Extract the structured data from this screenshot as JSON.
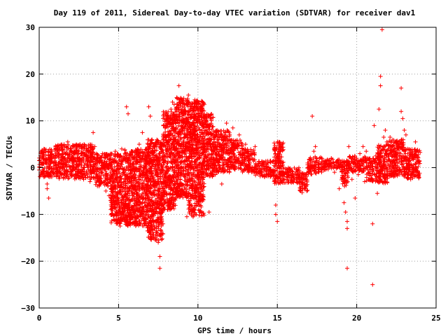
{
  "chart_data": {
    "type": "scatter",
    "title": "Day 119 of 2011, Sidereal Day-to-day VTEC variation (SDTVAR) for receiver dav1",
    "xlabel": "GPS time / hours",
    "ylabel": "SDTVAR / TECUs",
    "xlim": [
      0,
      25
    ],
    "ylim": [
      -30,
      30
    ],
    "x_ticks": [
      0,
      5,
      10,
      15,
      20,
      25
    ],
    "y_ticks": [
      -30,
      -20,
      -10,
      0,
      10,
      20,
      30
    ],
    "x_tick_labels": [
      "0",
      "5",
      "10",
      "15",
      "20",
      "25"
    ],
    "y_tick_labels": [
      "−30",
      "−20",
      "−10",
      "0",
      "10",
      "20",
      "30"
    ],
    "grid": true,
    "marker": "plus",
    "color": "#ff0000",
    "series": [
      {
        "points": [
          [
            0.0,
            1.5
          ],
          [
            0.0,
            -0.5
          ],
          [
            0.1,
            3.0
          ],
          [
            0.1,
            -1.0
          ],
          [
            0.2,
            2.5
          ],
          [
            0.3,
            4.0
          ],
          [
            0.3,
            -2.0
          ],
          [
            0.4,
            3.5
          ],
          [
            0.5,
            -3.5
          ],
          [
            0.5,
            -4.5
          ],
          [
            0.6,
            -6.5
          ],
          [
            0.7,
            2.0
          ],
          [
            0.8,
            3.5
          ],
          [
            0.9,
            1.0
          ],
          [
            1.0,
            2.0
          ],
          [
            1.1,
            -1.0
          ],
          [
            1.2,
            3.0
          ],
          [
            1.3,
            -2.0
          ],
          [
            1.4,
            1.5
          ],
          [
            1.5,
            3.0
          ],
          [
            1.6,
            -0.5
          ],
          [
            1.7,
            4.5
          ],
          [
            1.8,
            5.5
          ],
          [
            1.9,
            2.0
          ],
          [
            2.0,
            4.0
          ],
          [
            2.1,
            1.0
          ],
          [
            2.2,
            3.0
          ],
          [
            2.3,
            -1.5
          ],
          [
            2.4,
            2.0
          ],
          [
            2.5,
            0.5
          ],
          [
            2.6,
            -1.0
          ],
          [
            2.7,
            3.0
          ],
          [
            2.8,
            -2.5
          ],
          [
            2.9,
            1.0
          ],
          [
            3.0,
            2.5
          ],
          [
            3.1,
            -0.5
          ],
          [
            3.2,
            -3.0
          ],
          [
            3.3,
            2.5
          ],
          [
            3.4,
            7.5
          ],
          [
            3.5,
            4.5
          ],
          [
            3.6,
            0.5
          ],
          [
            3.7,
            -2.0
          ],
          [
            3.8,
            1.5
          ],
          [
            3.9,
            -1.0
          ],
          [
            4.0,
            0.0
          ],
          [
            4.1,
            -3.0
          ],
          [
            4.2,
            -5.0
          ],
          [
            4.3,
            2.0
          ],
          [
            4.4,
            -6.0
          ],
          [
            4.5,
            -7.0
          ],
          [
            4.6,
            -3.5
          ],
          [
            4.7,
            -8.0
          ],
          [
            4.8,
            3.5
          ],
          [
            4.9,
            -9.5
          ],
          [
            5.0,
            -11.0
          ],
          [
            5.1,
            -12.5
          ],
          [
            5.2,
            4.0
          ],
          [
            5.3,
            -10.5
          ],
          [
            5.4,
            -8.5
          ],
          [
            5.5,
            13.0
          ],
          [
            5.6,
            11.5
          ],
          [
            5.7,
            3.0
          ],
          [
            5.8,
            -7.0
          ],
          [
            5.9,
            2.0
          ],
          [
            6.0,
            -9.0
          ],
          [
            6.1,
            -11.5
          ],
          [
            6.2,
            -12.0
          ],
          [
            6.3,
            5.0
          ],
          [
            6.4,
            -10.0
          ],
          [
            6.5,
            7.5
          ],
          [
            6.6,
            0.5
          ],
          [
            6.7,
            -6.0
          ],
          [
            6.8,
            -8.5
          ],
          [
            6.9,
            13.0
          ],
          [
            7.0,
            11.0
          ],
          [
            7.1,
            6.0
          ],
          [
            7.2,
            4.5
          ],
          [
            7.3,
            -13.0
          ],
          [
            7.4,
            -15.5
          ],
          [
            7.5,
            -16.0
          ],
          [
            7.6,
            -19.0
          ],
          [
            7.6,
            -21.5
          ],
          [
            7.7,
            -14.0
          ],
          [
            7.8,
            -12.0
          ],
          [
            7.9,
            1.5
          ],
          [
            8.0,
            3.0
          ],
          [
            8.1,
            -7.5
          ],
          [
            8.2,
            10.5
          ],
          [
            8.3,
            12.5
          ],
          [
            8.4,
            14.0
          ],
          [
            8.5,
            13.5
          ],
          [
            8.6,
            6.0
          ],
          [
            8.7,
            -3.5
          ],
          [
            8.8,
            17.5
          ],
          [
            8.9,
            14.0
          ],
          [
            9.0,
            12.0
          ],
          [
            9.1,
            9.5
          ],
          [
            9.2,
            -6.0
          ],
          [
            9.3,
            -10.5
          ],
          [
            9.4,
            15.5
          ],
          [
            9.5,
            13.0
          ],
          [
            9.6,
            -8.0
          ],
          [
            9.7,
            -4.0
          ],
          [
            9.8,
            14.5
          ],
          [
            9.9,
            -10.0
          ],
          [
            10.0,
            11.5
          ],
          [
            10.1,
            9.5
          ],
          [
            10.2,
            12.0
          ],
          [
            10.3,
            1.0
          ],
          [
            10.4,
            13.5
          ],
          [
            10.5,
            11.0
          ],
          [
            10.6,
            7.5
          ],
          [
            10.7,
            -9.5
          ],
          [
            10.8,
            5.0
          ],
          [
            10.9,
            3.0
          ],
          [
            11.0,
            6.0
          ],
          [
            11.1,
            -1.5
          ],
          [
            11.2,
            4.5
          ],
          [
            11.3,
            6.0
          ],
          [
            11.4,
            2.0
          ],
          [
            11.5,
            -3.5
          ],
          [
            11.6,
            5.0
          ],
          [
            11.7,
            7.0
          ],
          [
            11.8,
            9.5
          ],
          [
            11.9,
            1.5
          ],
          [
            12.0,
            7.0
          ],
          [
            12.2,
            8.5
          ],
          [
            12.4,
            4.5
          ],
          [
            12.6,
            7.0
          ],
          [
            12.8,
            2.5
          ],
          [
            13.0,
            5.0
          ],
          [
            13.2,
            1.5
          ],
          [
            13.4,
            3.5
          ],
          [
            13.6,
            4.5
          ],
          [
            13.8,
            -1.0
          ],
          [
            14.0,
            0.5
          ],
          [
            14.2,
            -2.0
          ],
          [
            14.4,
            1.0
          ],
          [
            14.6,
            -1.5
          ],
          [
            14.8,
            -3.0
          ],
          [
            14.9,
            -8.0
          ],
          [
            14.9,
            -10.0
          ],
          [
            15.0,
            -11.5
          ],
          [
            15.1,
            5.5
          ],
          [
            15.2,
            3.5
          ],
          [
            15.3,
            0.5
          ],
          [
            15.4,
            -2.5
          ],
          [
            15.5,
            -1.0
          ],
          [
            15.6,
            -2.0
          ],
          [
            15.8,
            -1.5
          ],
          [
            16.0,
            -3.0
          ],
          [
            16.2,
            -2.5
          ],
          [
            16.4,
            -3.5
          ],
          [
            16.6,
            -4.5
          ],
          [
            16.8,
            -4.0
          ],
          [
            17.0,
            -1.0
          ],
          [
            17.1,
            1.0
          ],
          [
            17.2,
            11.0
          ],
          [
            17.3,
            3.5
          ],
          [
            17.4,
            4.5
          ],
          [
            17.5,
            1.5
          ],
          [
            17.6,
            0.0
          ],
          [
            17.8,
            2.0
          ],
          [
            18.0,
            1.5
          ],
          [
            18.2,
            0.5
          ],
          [
            18.4,
            2.0
          ],
          [
            18.6,
            -1.0
          ],
          [
            18.8,
            1.5
          ],
          [
            18.9,
            -4.5
          ],
          [
            19.0,
            0.5
          ],
          [
            19.1,
            -2.0
          ],
          [
            19.2,
            -7.5
          ],
          [
            19.3,
            -9.5
          ],
          [
            19.4,
            -11.5
          ],
          [
            19.4,
            -13.0
          ],
          [
            19.4,
            -21.5
          ],
          [
            19.5,
            4.5
          ],
          [
            19.6,
            0.5
          ],
          [
            19.7,
            -2.5
          ],
          [
            19.8,
            1.0
          ],
          [
            19.9,
            -6.5
          ],
          [
            20.0,
            2.0
          ],
          [
            20.1,
            -1.5
          ],
          [
            20.2,
            3.0
          ],
          [
            20.3,
            1.5
          ],
          [
            20.4,
            4.5
          ],
          [
            20.5,
            -3.0
          ],
          [
            20.6,
            3.5
          ],
          [
            20.7,
            2.0
          ],
          [
            20.8,
            1.5
          ],
          [
            20.9,
            0.5
          ],
          [
            21.0,
            -0.5
          ],
          [
            21.0,
            -12.0
          ],
          [
            21.0,
            -25.0
          ],
          [
            21.1,
            9.0
          ],
          [
            21.2,
            2.5
          ],
          [
            21.3,
            -5.5
          ],
          [
            21.4,
            12.5
          ],
          [
            21.5,
            17.5
          ],
          [
            21.5,
            19.5
          ],
          [
            21.6,
            29.5
          ],
          [
            21.7,
            6.5
          ],
          [
            21.8,
            8.0
          ],
          [
            21.9,
            5.5
          ],
          [
            22.0,
            4.0
          ],
          [
            22.1,
            6.5
          ],
          [
            22.2,
            2.5
          ],
          [
            22.3,
            1.5
          ],
          [
            22.4,
            3.5
          ],
          [
            22.5,
            5.5
          ],
          [
            22.6,
            4.5
          ],
          [
            22.7,
            2.0
          ],
          [
            22.8,
            17.0
          ],
          [
            22.8,
            12.0
          ],
          [
            22.9,
            10.5
          ],
          [
            23.0,
            8.0
          ],
          [
            23.1,
            7.0
          ],
          [
            23.2,
            4.0
          ],
          [
            23.3,
            2.0
          ],
          [
            23.4,
            -2.5
          ],
          [
            23.5,
            3.5
          ],
          [
            23.6,
            -1.0
          ],
          [
            23.7,
            5.5
          ],
          [
            23.8,
            2.5
          ],
          [
            23.9,
            1.0
          ]
        ]
      }
    ],
    "bands": [
      {
        "x0": 0.0,
        "x1": 1.0,
        "lo": -2.0,
        "hi": 4.0
      },
      {
        "x0": 1.0,
        "x1": 3.5,
        "lo": -2.5,
        "hi": 5.0
      },
      {
        "x0": 3.5,
        "x1": 4.5,
        "lo": -4.0,
        "hi": 3.0
      },
      {
        "x0": 4.5,
        "x1": 5.3,
        "lo": -12.0,
        "hi": 3.0
      },
      {
        "x0": 5.3,
        "x1": 6.8,
        "lo": -12.5,
        "hi": 4.0
      },
      {
        "x0": 6.8,
        "x1": 7.8,
        "lo": -15.5,
        "hi": 6.0
      },
      {
        "x0": 7.8,
        "x1": 8.6,
        "lo": -9.0,
        "hi": 12.0
      },
      {
        "x0": 8.6,
        "x1": 9.4,
        "lo": -6.5,
        "hi": 15.0
      },
      {
        "x0": 9.4,
        "x1": 10.4,
        "lo": -10.5,
        "hi": 14.5
      },
      {
        "x0": 10.4,
        "x1": 11.0,
        "lo": -2.0,
        "hi": 11.5
      },
      {
        "x0": 11.0,
        "x1": 12.0,
        "lo": -1.0,
        "hi": 8.0
      },
      {
        "x0": 12.0,
        "x1": 12.8,
        "lo": -0.5,
        "hi": 6.0
      },
      {
        "x0": 12.8,
        "x1": 13.6,
        "lo": -1.0,
        "hi": 4.0
      },
      {
        "x0": 13.6,
        "x1": 14.8,
        "lo": -2.0,
        "hi": 1.5
      },
      {
        "x0": 14.8,
        "x1": 15.4,
        "lo": -3.5,
        "hi": 5.5
      },
      {
        "x0": 15.4,
        "x1": 16.4,
        "lo": -3.5,
        "hi": 0.0
      },
      {
        "x0": 16.4,
        "x1": 16.9,
        "lo": -5.5,
        "hi": -1.0
      },
      {
        "x0": 16.9,
        "x1": 17.8,
        "lo": -1.5,
        "hi": 2.5
      },
      {
        "x0": 17.8,
        "x1": 19.0,
        "lo": -0.5,
        "hi": 2.0
      },
      {
        "x0": 19.0,
        "x1": 19.5,
        "lo": -4.0,
        "hi": 1.5
      },
      {
        "x0": 19.5,
        "x1": 20.6,
        "lo": -1.0,
        "hi": 2.5
      },
      {
        "x0": 20.6,
        "x1": 21.3,
        "lo": -3.0,
        "hi": 2.0
      },
      {
        "x0": 21.3,
        "x1": 22.0,
        "lo": -3.5,
        "hi": 5.0
      },
      {
        "x0": 22.0,
        "x1": 23.0,
        "lo": -2.0,
        "hi": 6.0
      },
      {
        "x0": 23.0,
        "x1": 24.0,
        "lo": -2.5,
        "hi": 4.0
      }
    ]
  }
}
